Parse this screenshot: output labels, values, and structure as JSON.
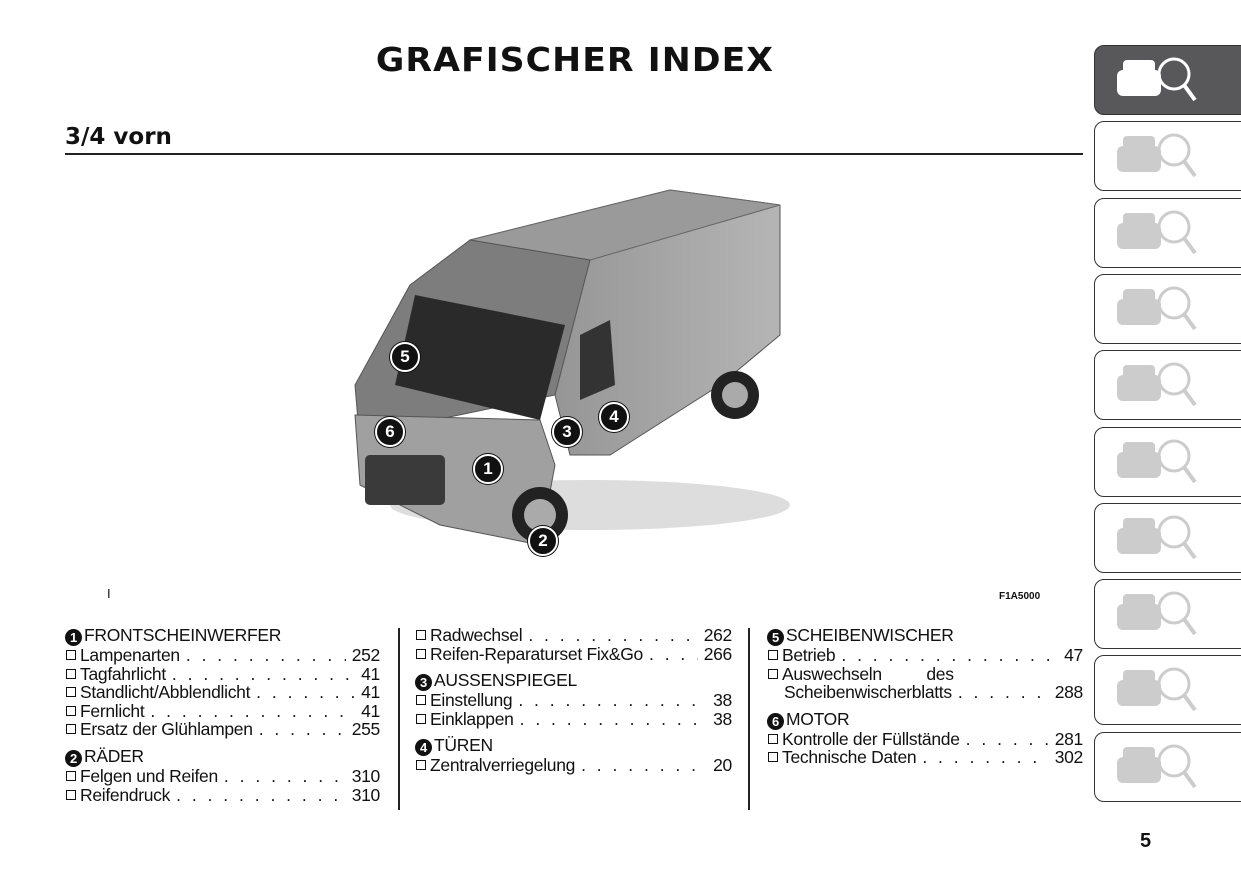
{
  "title": "GRAFISCHER INDEX",
  "subtitle": "3/4 vorn",
  "figure": {
    "marker": "I",
    "code": "F1A5000",
    "callouts": [
      "1",
      "2",
      "3",
      "4",
      "5",
      "6"
    ]
  },
  "tabs": [
    {
      "icon": "car-magnifier-icon",
      "active": true
    },
    {
      "icon": "car-info-icon"
    },
    {
      "icon": "warning-light-message-icon"
    },
    {
      "icon": "airbag-seat-icon"
    },
    {
      "icon": "key-steering-wheel-icon"
    },
    {
      "icon": "car-warning-triangle-icon"
    },
    {
      "icon": "car-wrench-icon"
    },
    {
      "icon": "list-gears-icon"
    },
    {
      "icon": "navigation-music-icon"
    },
    {
      "icon": "alphabet-index-icon"
    }
  ],
  "columns": [
    [
      {
        "n": "1",
        "head": "FRONTSCHEINWERFER",
        "items": [
          [
            "Lampenarten",
            "252"
          ],
          [
            "Tagfahrlicht",
            "41"
          ],
          [
            "Standlicht/Abblendlicht",
            "41"
          ],
          [
            "Fernlicht",
            "41"
          ],
          [
            "Ersatz der Glühlampen",
            "255"
          ]
        ]
      },
      {
        "n": "2",
        "head": "RÄDER",
        "items": [
          [
            "Felgen und Reifen",
            "310"
          ],
          [
            "Reifendruck",
            "310"
          ]
        ]
      }
    ],
    [
      {
        "n": "",
        "head": "",
        "items": [
          [
            "Radwechsel",
            "262"
          ],
          [
            "Reifen-Reparaturset Fix&Go",
            "266"
          ]
        ]
      },
      {
        "n": "3",
        "head": "AUSSENSPIEGEL",
        "items": [
          [
            "Einstellung",
            "38"
          ],
          [
            "Einklappen",
            "38"
          ]
        ]
      },
      {
        "n": "4",
        "head": "TÜREN",
        "items": [
          [
            "Zentralverriegelung",
            "20"
          ]
        ]
      }
    ],
    [
      {
        "n": "5",
        "head": "SCHEIBENWISCHER",
        "items": [
          [
            "Betrieb",
            "47"
          ],
          [
            "Auswechseln des",
            ""
          ],
          [
            "Scheibenwischerblatts",
            "288"
          ]
        ]
      },
      {
        "n": "6",
        "head": "MOTOR",
        "items": [
          [
            "Kontrolle der Füllstände",
            "281"
          ],
          [
            "Technische Daten",
            "302"
          ]
        ]
      }
    ]
  ],
  "page_number": "5"
}
